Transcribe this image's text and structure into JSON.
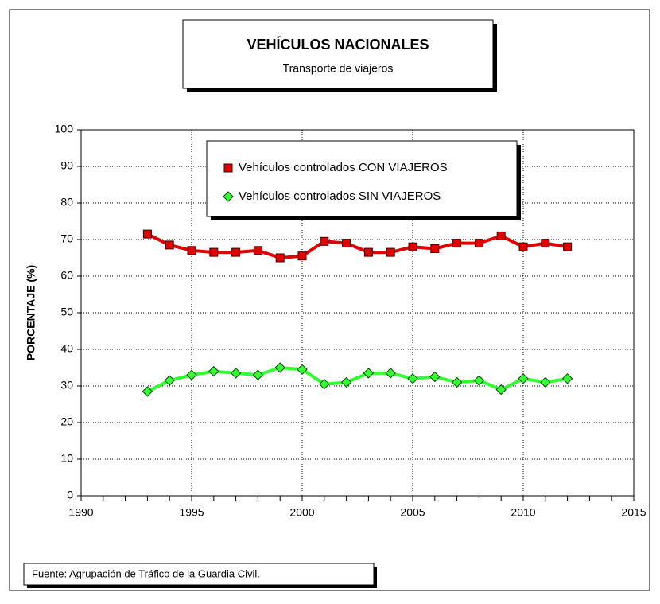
{
  "chart_data": {
    "type": "line",
    "title": "VEHÍCULOS NACIONALES",
    "subtitle": "Transporte de viajeros",
    "y_label": "PORCENTAJE (%)",
    "source": "Fuente: Agrupación de Tráfico de la Guardia Civil.",
    "x": [
      1993,
      1994,
      1995,
      1996,
      1997,
      1998,
      1999,
      2000,
      2001,
      2002,
      2003,
      2004,
      2005,
      2006,
      2007,
      2008,
      2009,
      2010,
      2011,
      2012
    ],
    "series": [
      {
        "name": "Vehículos controlados CON VIAJEROS",
        "color": "#e00000",
        "marker": "square",
        "values": [
          71.5,
          68.5,
          67,
          66.5,
          66.5,
          67,
          65,
          65.5,
          69.5,
          69,
          66.5,
          66.5,
          68,
          67.5,
          69,
          69,
          71,
          68,
          69,
          68
        ]
      },
      {
        "name": "Vehículos controlados SIN VIAJEROS",
        "color": "#33ff33",
        "marker": "diamond",
        "values": [
          28.5,
          31.5,
          33,
          34,
          33.5,
          33,
          35,
          34.5,
          30.5,
          31,
          33.5,
          33.5,
          32,
          32.5,
          31,
          31.5,
          29,
          32,
          31,
          32
        ]
      }
    ],
    "xlim": [
      1990,
      2015
    ],
    "xticks": [
      1990,
      1995,
      2000,
      2005,
      2010,
      2015
    ],
    "xminorticks": [
      1991,
      1992,
      1993,
      1994,
      1996,
      1997,
      1998,
      1999,
      2001,
      2002,
      2003,
      2004,
      2006,
      2007,
      2008,
      2009,
      2011,
      2012,
      2013,
      2014
    ],
    "ylim": [
      0,
      100
    ],
    "yticks": [
      0,
      10,
      20,
      30,
      40,
      50,
      60,
      70,
      80,
      90,
      100
    ],
    "grid": true,
    "legend": "top"
  }
}
